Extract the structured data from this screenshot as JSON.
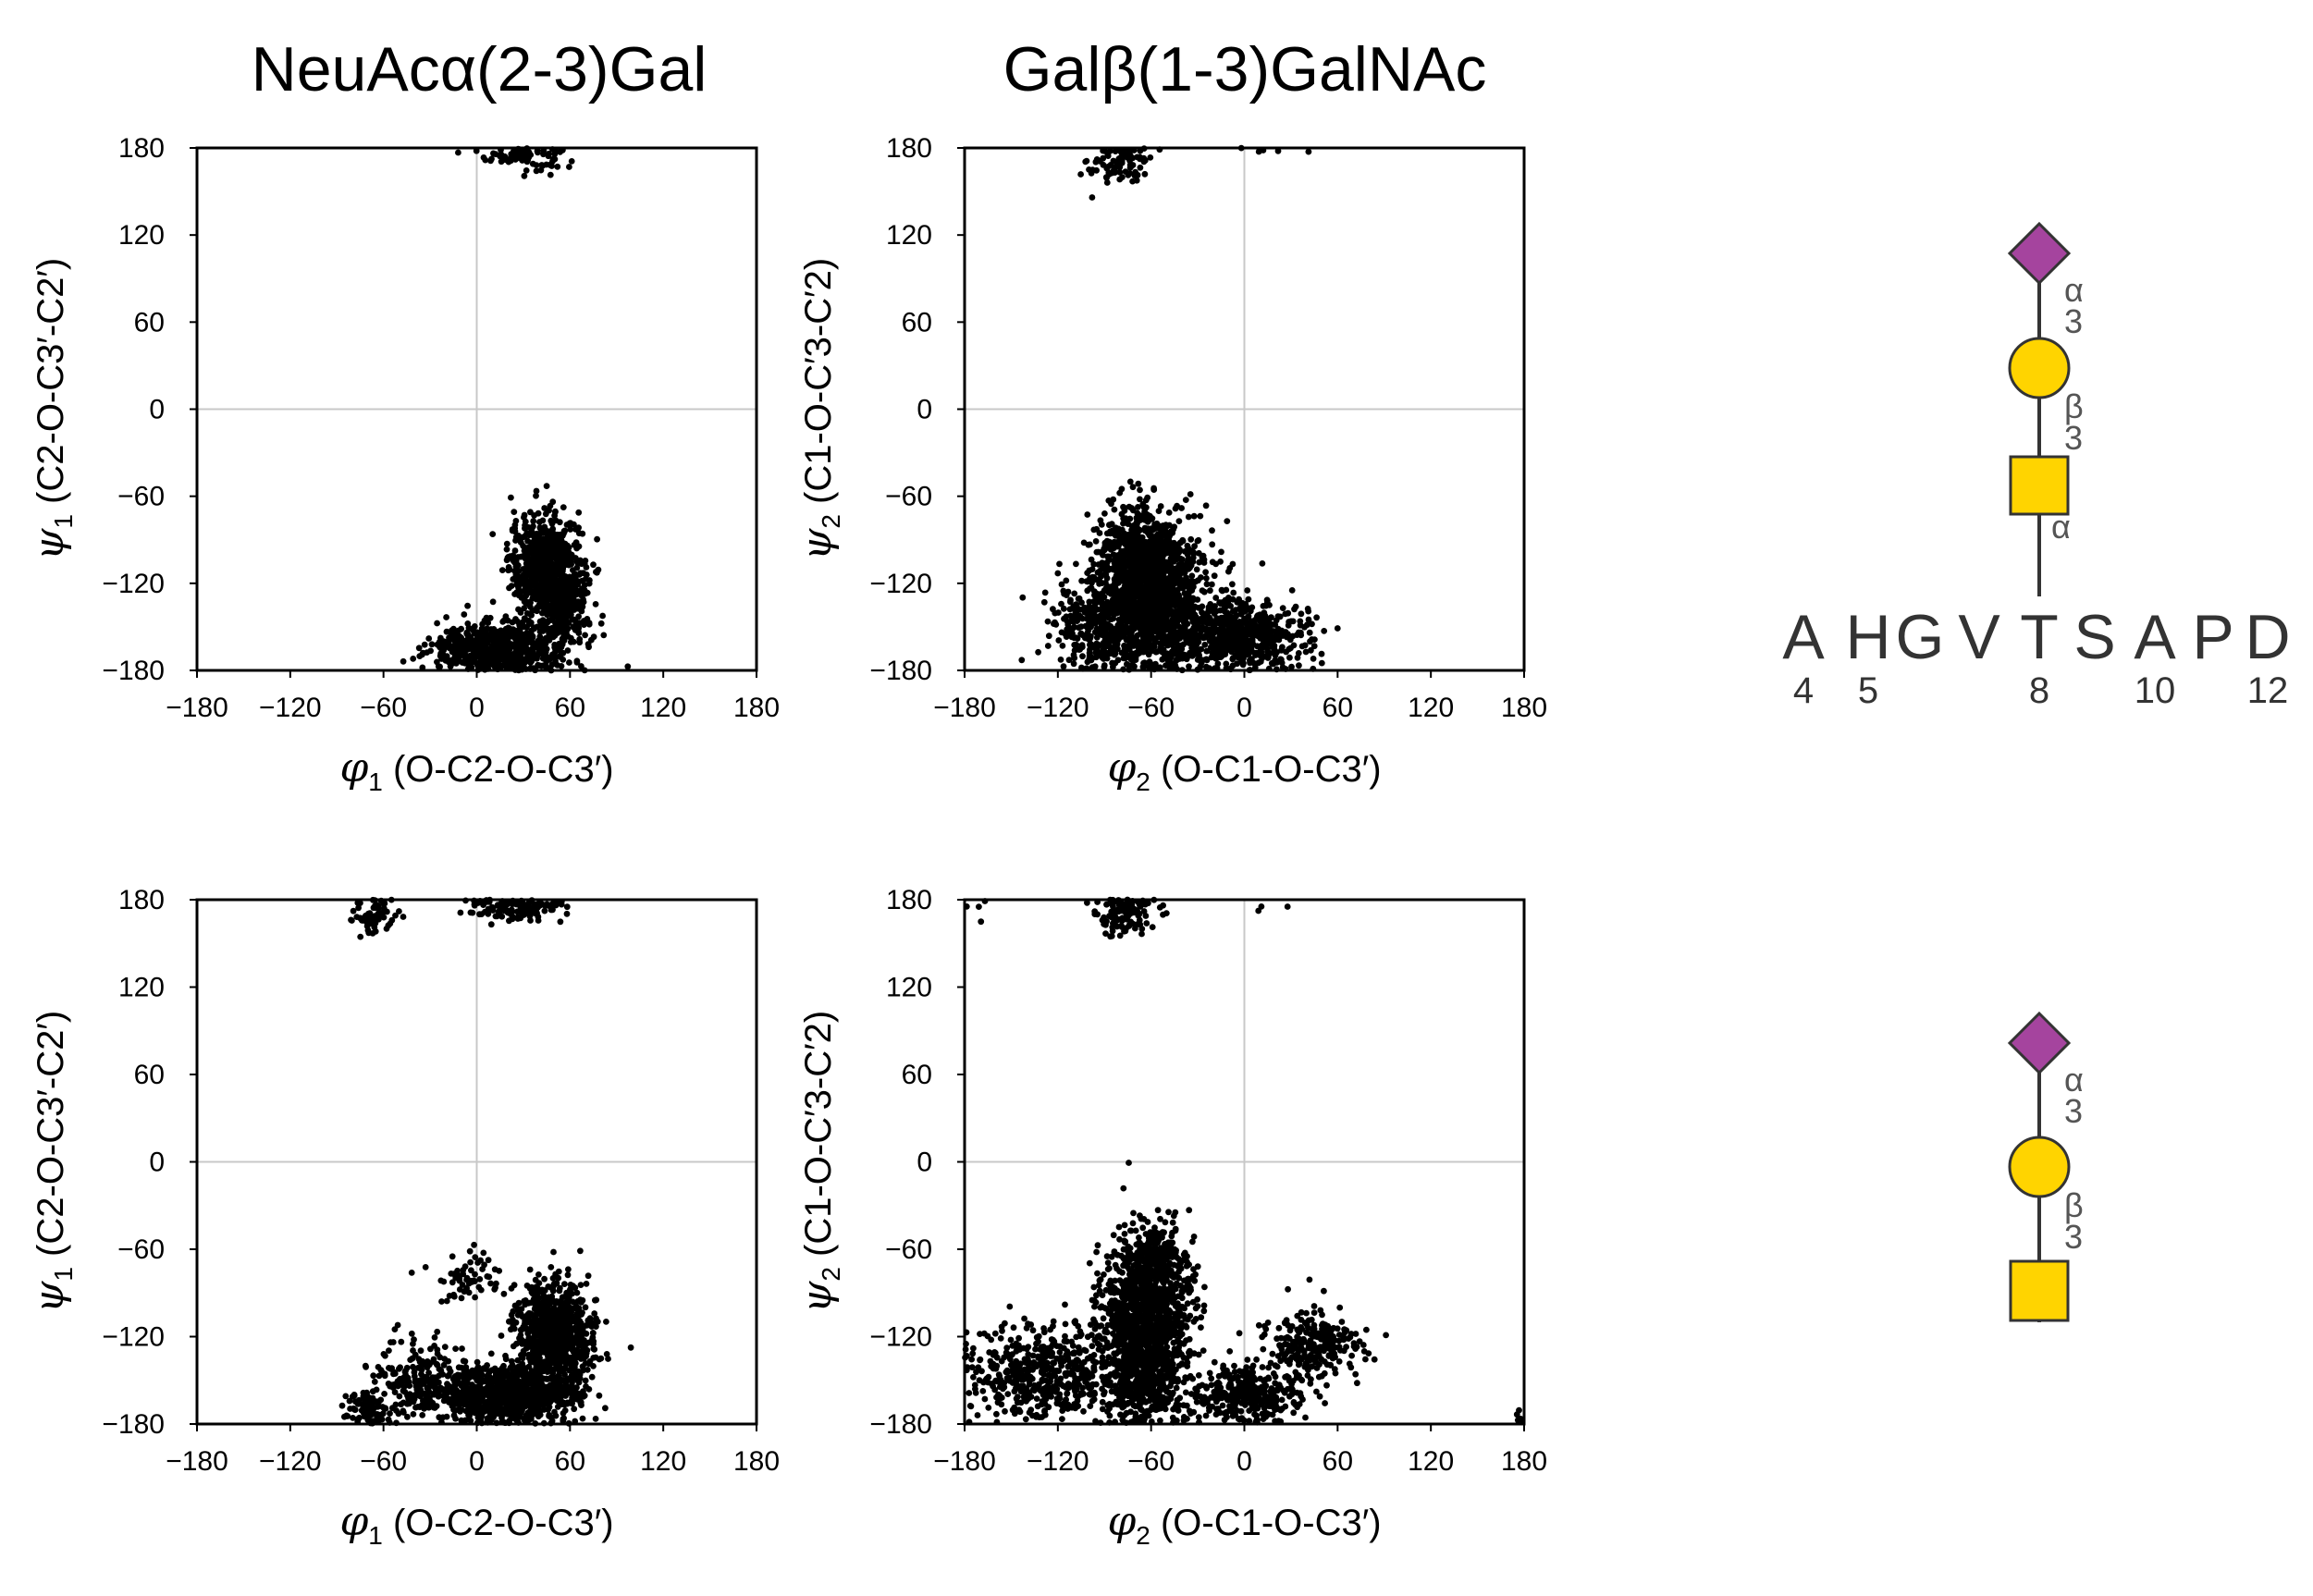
{
  "column_titles": [
    "NeuAcα(2-3)Gal",
    "Galβ(1-3)GalNAc"
  ],
  "chart_data": [
    {
      "type": "scatter",
      "id": "neuac-gal-top",
      "xlabel_symbol": "φ",
      "xlabel_sub": "1",
      "xlabel_text": "(O-C2-O-C3′)",
      "ylabel_symbol": "ψ",
      "ylabel_sub": "1",
      "ylabel_text": "(C2-O-C3′-C2′)",
      "xlim": [
        -180,
        180
      ],
      "ylim": [
        -180,
        180
      ],
      "xticks": [
        -180,
        -120,
        -60,
        0,
        60,
        120,
        180
      ],
      "yticks": [
        -180,
        -120,
        -60,
        0,
        60,
        120,
        180
      ],
      "xtick_labels": [
        "−180",
        "−120",
        "−60",
        "0",
        "60",
        "120",
        "180"
      ],
      "ytick_labels": [
        "−180",
        "−120",
        "−60",
        "0",
        "60",
        "120",
        "180"
      ],
      "clusters": [
        {
          "cx": 30,
          "cy": 175,
          "sx": 12,
          "sy": 5,
          "n": 90
        },
        {
          "cx": 45,
          "cy": -110,
          "sx": 12,
          "sy": 18,
          "n": 700
        },
        {
          "cx": 58,
          "cy": -135,
          "sx": 7,
          "sy": 12,
          "n": 200
        },
        {
          "cx": 18,
          "cy": -165,
          "sx": 22,
          "sy": 9,
          "n": 650
        },
        {
          "cx": -10,
          "cy": -160,
          "sx": 8,
          "sy": 8,
          "n": 40
        }
      ]
    },
    {
      "type": "scatter",
      "id": "gal-galnac-top",
      "xlabel_symbol": "φ",
      "xlabel_sub": "2",
      "xlabel_text": "(O-C1-O-C3′)",
      "ylabel_symbol": "ψ",
      "ylabel_sub": "2",
      "ylabel_text": "(C1-O-C′3-C′2)",
      "xlim": [
        -180,
        180
      ],
      "ylim": [
        -180,
        180
      ],
      "xticks": [
        -180,
        -120,
        -60,
        0,
        60,
        120,
        180
      ],
      "yticks": [
        -180,
        -120,
        -60,
        0,
        60,
        120,
        180
      ],
      "xtick_labels": [
        "−180",
        "−120",
        "−60",
        "0",
        "60",
        "120",
        "180"
      ],
      "ytick_labels": [
        "−180",
        "−120",
        "−60",
        "0",
        "60",
        "120",
        "180"
      ],
      "clusters": [
        {
          "cx": -80,
          "cy": 170,
          "sx": 10,
          "sy": 8,
          "n": 90
        },
        {
          "cx": 15,
          "cy": 178,
          "sx": 15,
          "sy": 2,
          "n": 5
        },
        {
          "cx": -60,
          "cy": -130,
          "sx": 18,
          "sy": 25,
          "n": 1300
        },
        {
          "cx": -70,
          "cy": -100,
          "sx": 12,
          "sy": 18,
          "n": 350
        },
        {
          "cx": -5,
          "cy": -155,
          "sx": 22,
          "sy": 12,
          "n": 650
        },
        {
          "cx": -95,
          "cy": -150,
          "sx": 15,
          "sy": 15,
          "n": 300
        }
      ]
    },
    {
      "type": "scatter",
      "id": "neuac-gal-bottom",
      "xlabel_symbol": "φ",
      "xlabel_sub": "1",
      "xlabel_text": "(O-C2-O-C3′)",
      "ylabel_symbol": "ψ",
      "ylabel_sub": "1",
      "ylabel_text": "(C2-O-C3′-C2′)",
      "xlim": [
        -180,
        180
      ],
      "ylim": [
        -180,
        180
      ],
      "xticks": [
        -180,
        -120,
        -60,
        0,
        60,
        120,
        180
      ],
      "yticks": [
        -180,
        -120,
        -60,
        0,
        60,
        120,
        180
      ],
      "xtick_labels": [
        "−180",
        "−120",
        "−60",
        "0",
        "60",
        "120",
        "180"
      ],
      "ytick_labels": [
        "−180",
        "−120",
        "−60",
        "0",
        "60",
        "120",
        "180"
      ],
      "clusters": [
        {
          "cx": -65,
          "cy": 170,
          "sx": 8,
          "sy": 7,
          "n": 70
        },
        {
          "cx": 25,
          "cy": 174,
          "sx": 15,
          "sy": 5,
          "n": 130
        },
        {
          "cx": 50,
          "cy": -120,
          "sx": 12,
          "sy": 18,
          "n": 900
        },
        {
          "cx": 20,
          "cy": -160,
          "sx": 22,
          "sy": 10,
          "n": 900
        },
        {
          "cx": -40,
          "cy": -150,
          "sx": 14,
          "sy": 14,
          "n": 180
        },
        {
          "cx": -70,
          "cy": -170,
          "sx": 8,
          "sy": 5,
          "n": 90
        },
        {
          "cx": -5,
          "cy": -80,
          "sx": 10,
          "sy": 10,
          "n": 60
        }
      ]
    },
    {
      "type": "scatter",
      "id": "gal-galnac-bottom",
      "xlabel_symbol": "φ",
      "xlabel_sub": "2",
      "xlabel_text": "(O-C1-O-C3′)",
      "ylabel_symbol": "ψ",
      "ylabel_sub": "2",
      "ylabel_text": "(C1-O-C′3-C′2)",
      "xlim": [
        -180,
        180
      ],
      "ylim": [
        -180,
        180
      ],
      "xticks": [
        -180,
        -120,
        -60,
        0,
        60,
        120,
        180
      ],
      "yticks": [
        -180,
        -120,
        -60,
        0,
        60,
        120,
        180
      ],
      "xtick_labels": [
        "−180",
        "−120",
        "−60",
        "0",
        "60",
        "120",
        "180"
      ],
      "ytick_labels": [
        "−180",
        "−120",
        "−60",
        "0",
        "60",
        "120",
        "180"
      ],
      "clusters": [
        {
          "cx": -78,
          "cy": 170,
          "sx": 10,
          "sy": 8,
          "n": 120
        },
        {
          "cx": -170,
          "cy": 175,
          "sx": 5,
          "sy": 3,
          "n": 4
        },
        {
          "cx": 15,
          "cy": 176,
          "sx": 8,
          "sy": 3,
          "n": 3
        },
        {
          "cx": -65,
          "cy": -120,
          "sx": 14,
          "sy": 32,
          "n": 1400
        },
        {
          "cx": -55,
          "cy": -70,
          "sx": 10,
          "sy": 14,
          "n": 250
        },
        {
          "cx": -130,
          "cy": -145,
          "sx": 25,
          "sy": 15,
          "n": 500
        },
        {
          "cx": 45,
          "cy": -125,
          "sx": 16,
          "sy": 12,
          "n": 250
        },
        {
          "cx": 0,
          "cy": -160,
          "sx": 18,
          "sy": 10,
          "n": 350
        },
        {
          "cx": 178,
          "cy": -175,
          "sx": 2,
          "sy": 3,
          "n": 6
        }
      ]
    }
  ],
  "glycan_top": {
    "links": [
      {
        "anomer": "α",
        "position": "3"
      },
      {
        "anomer": "β",
        "position": "3"
      }
    ],
    "attachment_anomer": "α",
    "sequence": [
      "A",
      "H",
      "G",
      "V",
      "T",
      "S",
      "A",
      "P",
      "D"
    ],
    "numbers": [
      "4",
      "5",
      "8",
      "10",
      "12"
    ],
    "colors": {
      "sialic": "#a5449e",
      "gal": "#ffd400",
      "galnac": "#ffd400"
    }
  },
  "glycan_bottom": {
    "links": [
      {
        "anomer": "α",
        "position": "3"
      },
      {
        "anomer": "β",
        "position": "3"
      }
    ],
    "colors": {
      "sialic": "#a5449e",
      "gal": "#ffd400",
      "galnac": "#ffd400"
    }
  }
}
